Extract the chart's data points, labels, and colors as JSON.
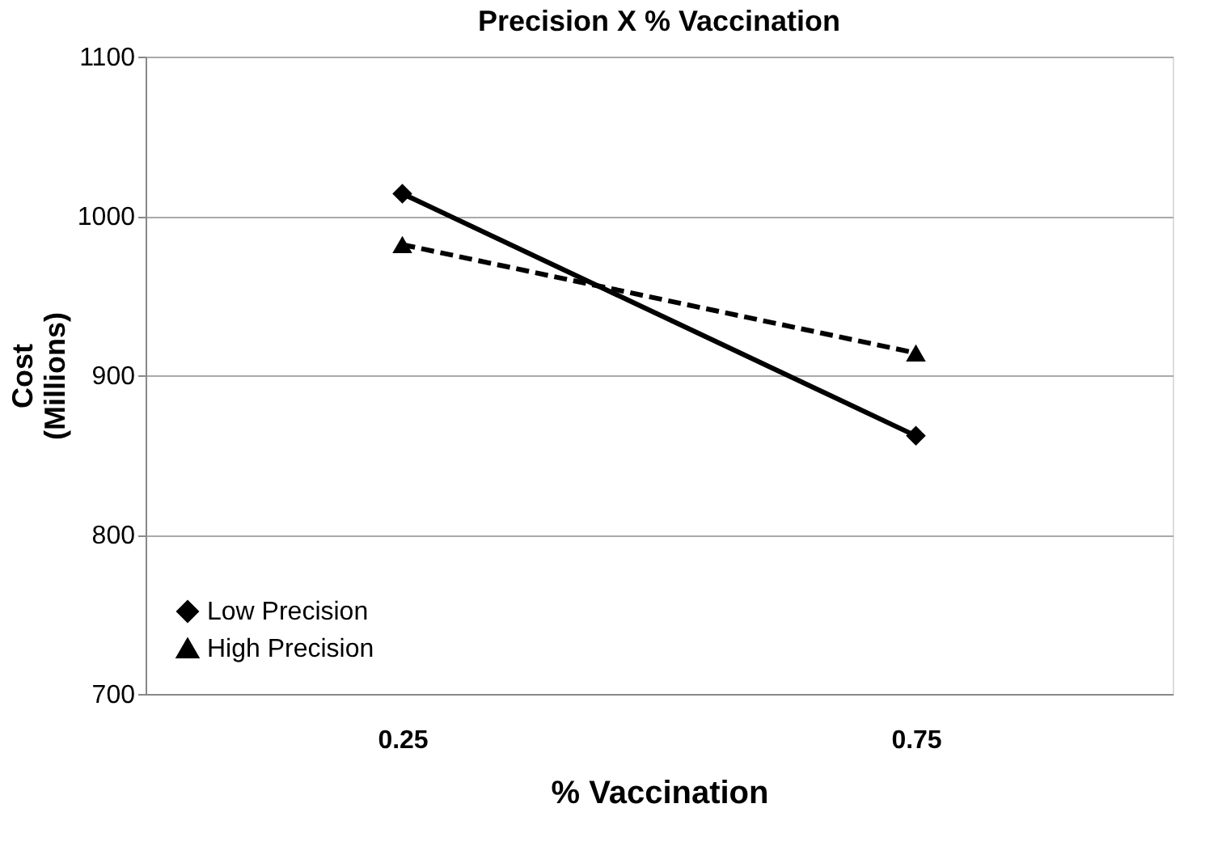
{
  "chart_data": {
    "type": "line",
    "title": "Precision  X  % Vaccination",
    "xlabel": "% Vaccination",
    "ylabel": "Cost\n(Millions)",
    "categories": [
      "0.25",
      "0.75"
    ],
    "series": [
      {
        "name": "Low Precision",
        "color": "#000000",
        "values": [
          1014,
          862
        ],
        "marker": "diamond",
        "line_style": "solid"
      },
      {
        "name": "High Precision",
        "color": "#000000",
        "values": [
          982,
          914
        ],
        "marker": "triangle",
        "line_style": "dashed"
      }
    ],
    "ylim": [
      700,
      1100
    ],
    "yticks": [
      700,
      800,
      900,
      1000,
      1100
    ],
    "grid": "y",
    "legend": "bottom left"
  }
}
